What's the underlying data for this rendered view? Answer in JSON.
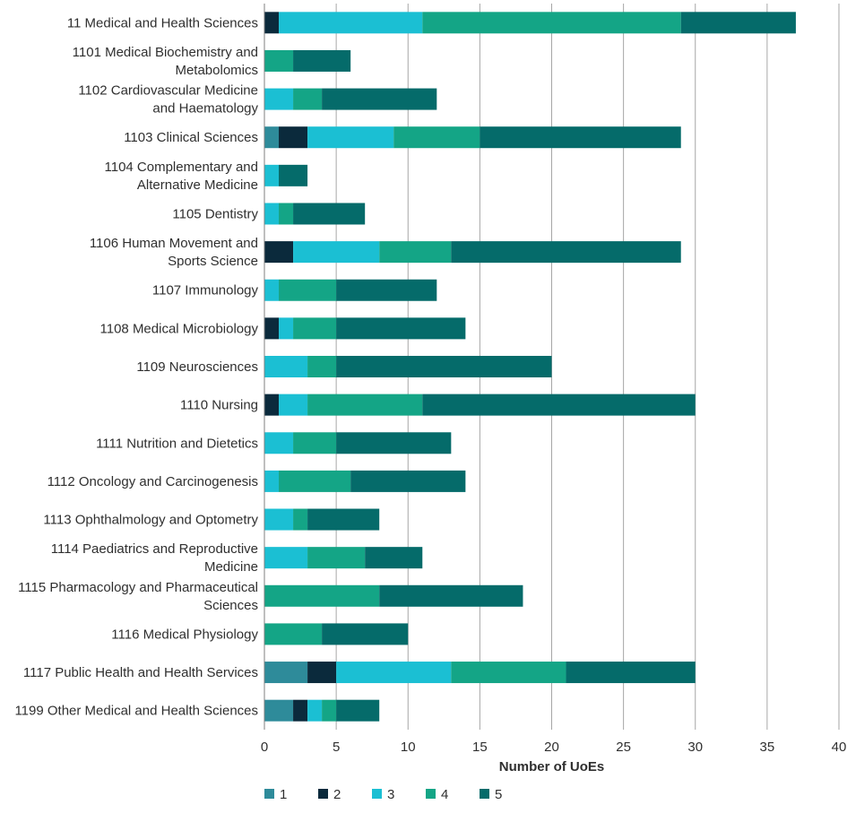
{
  "chart_data": {
    "type": "bar",
    "orientation": "horizontal",
    "stacked": true,
    "title": "",
    "xlabel": "Number of UoEs",
    "ylabel": "",
    "xlim": [
      0,
      40
    ],
    "xticks": [
      0,
      5,
      10,
      15,
      20,
      25,
      30,
      35,
      40
    ],
    "grid": "vertical",
    "legend_position": "bottom",
    "categories": [
      [
        "11 Medical and Health Sciences"
      ],
      [
        "1101 Medical Biochemistry and",
        "Metabolomics"
      ],
      [
        "1102 Cardiovascular Medicine",
        "and Haematology"
      ],
      [
        "1103 Clinical Sciences"
      ],
      [
        "1104 Complementary and",
        "Alternative Medicine"
      ],
      [
        "1105 Dentistry"
      ],
      [
        "1106 Human Movement and",
        "Sports Science"
      ],
      [
        "1107 Immunology"
      ],
      [
        "1108 Medical Microbiology"
      ],
      [
        "1109 Neurosciences"
      ],
      [
        "1110 Nursing"
      ],
      [
        "1111 Nutrition and Dietetics"
      ],
      [
        "1112 Oncology and Carcinogenesis"
      ],
      [
        "1113 Ophthalmology and Optometry"
      ],
      [
        "1114 Paediatrics and Reproductive",
        "Medicine"
      ],
      [
        "1115 Pharmacology and Pharmaceutical",
        "Sciences"
      ],
      [
        "1116 Medical Physiology"
      ],
      [
        "1117 Public Health and Health Services"
      ],
      [
        "1199 Other Medical and Health Sciences"
      ]
    ],
    "series": [
      {
        "name": "1",
        "color": "#2e8b9a",
        "values": [
          0,
          0,
          0,
          1,
          0,
          0,
          0,
          0,
          0,
          0,
          0,
          0,
          0,
          0,
          0,
          0,
          0,
          3,
          2
        ]
      },
      {
        "name": "2",
        "color": "#0b2a3c",
        "values": [
          1,
          0,
          0,
          2,
          0,
          0,
          2,
          0,
          1,
          0,
          1,
          0,
          0,
          0,
          0,
          0,
          0,
          2,
          1
        ]
      },
      {
        "name": "3",
        "color": "#1bbfd3",
        "values": [
          10,
          0,
          2,
          6,
          1,
          1,
          6,
          1,
          1,
          3,
          2,
          2,
          1,
          2,
          3,
          0,
          0,
          8,
          1
        ]
      },
      {
        "name": "4",
        "color": "#14a586",
        "values": [
          18,
          2,
          2,
          6,
          0,
          1,
          5,
          4,
          3,
          2,
          8,
          3,
          5,
          1,
          4,
          8,
          4,
          8,
          1
        ]
      },
      {
        "name": "5",
        "color": "#056b6a",
        "values": [
          8,
          4,
          8,
          14,
          2,
          5,
          16,
          7,
          9,
          15,
          19,
          8,
          8,
          5,
          4,
          10,
          6,
          9,
          3
        ]
      }
    ]
  }
}
